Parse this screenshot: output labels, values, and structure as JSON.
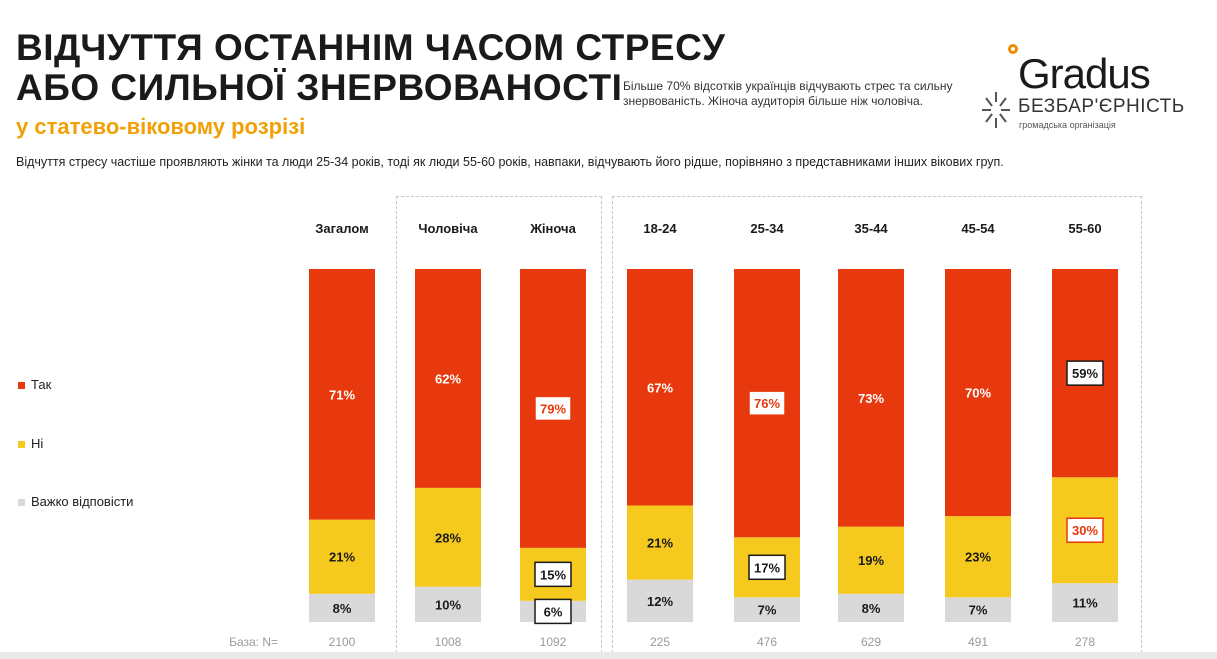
{
  "header": {
    "title_line1": "ВІДЧУТТЯ ОСТАННІМ ЧАСОМ СТРЕСУ",
    "title_line2": "АБО СИЛЬНОЇ ЗНЕРВОВАНОСТІ",
    "subtitle": "у статево-віковому розрізі",
    "note": "Більше 70% відсотків українців відчувають стрес та сильну знервованість. Жіноча аудиторія більше ніж чоловіча.",
    "lead": "Відчуття стресу частіше проявляють жінки та люди 25-34 років, тоді як люди 55-60 років, навпаки, відчувають його рідше, порівняно з представниками інших вікових груп."
  },
  "logo": {
    "gradus": "Gradus",
    "bezbar": "БЕЗБАР'ЄРНІСТЬ",
    "org": "громадська організація",
    "accent_color": "#f08a00"
  },
  "chart_data": {
    "type": "bar",
    "stacked": true,
    "unit": "%",
    "categories": [
      "Загалом",
      "Чоловіча",
      "Жіноча",
      "18-24",
      "25-34",
      "35-44",
      "45-54",
      "55-60"
    ],
    "series": [
      {
        "name": "Так",
        "color": "#e8380d",
        "values": [
          71,
          62,
          79,
          67,
          76,
          73,
          70,
          59
        ]
      },
      {
        "name": "Ні",
        "color": "#f5c91e",
        "values": [
          21,
          28,
          15,
          21,
          17,
          19,
          23,
          30
        ]
      },
      {
        "name": "Важко відповісти",
        "color": "#d9d9d9",
        "values": [
          8,
          10,
          6,
          12,
          7,
          8,
          7,
          11
        ]
      }
    ],
    "base_label": "База: N=",
    "base_n": [
      "2100",
      "1008",
      "1092",
      "225",
      "476",
      "629",
      "491",
      "278"
    ],
    "highlights": [
      {
        "category": "Жіноча",
        "series": "Так",
        "style": "red-box"
      },
      {
        "category": "Жіноча",
        "series": "Ні",
        "style": "dark-box"
      },
      {
        "category": "Жіноча",
        "series": "Важко відповісти",
        "style": "dark-box"
      },
      {
        "category": "25-34",
        "series": "Так",
        "style": "red-box"
      },
      {
        "category": "25-34",
        "series": "Ні",
        "style": "dark-box"
      },
      {
        "category": "55-60",
        "series": "Так",
        "style": "dark-box"
      },
      {
        "category": "55-60",
        "series": "Ні",
        "style": "red-box"
      }
    ],
    "legend_position": "left"
  }
}
